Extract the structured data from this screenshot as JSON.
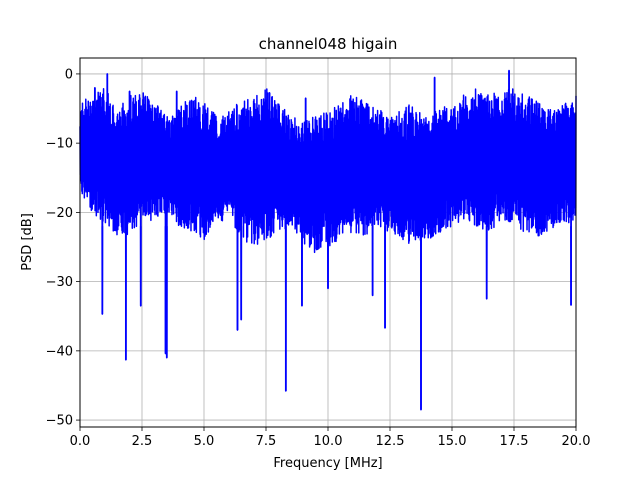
{
  "chart_data": {
    "type": "line",
    "title": "channel048 higain",
    "xlabel": "Frequency [MHz]",
    "ylabel": "PSD [dB]",
    "xlim": [
      0,
      20
    ],
    "ylim": [
      -51,
      2.3
    ],
    "xticks": [
      0,
      2.5,
      5,
      7.5,
      10,
      12.5,
      15,
      17.5,
      20
    ],
    "xtick_labels": [
      "0.0",
      "2.5",
      "5.0",
      "7.5",
      "10.0",
      "12.5",
      "15.0",
      "17.5",
      "20.0"
    ],
    "yticks": [
      0,
      -10,
      -20,
      -30,
      -40,
      -50
    ],
    "ytick_labels": [
      "0",
      "−10",
      "−20",
      "−30",
      "−40",
      "−50"
    ],
    "grid": true,
    "series": [
      {
        "color": "#0000ff",
        "x_start": 0,
        "x_end": 20,
        "band_upper": [
          -4,
          -3,
          -2,
          -5,
          -3,
          -2,
          -4,
          -6,
          -5,
          -3,
          -4,
          -6,
          -5,
          -4,
          -3,
          -2,
          -4,
          -6,
          -7,
          -6,
          -5,
          -4,
          -3,
          -4,
          -5,
          -6,
          -5,
          -4,
          -6,
          -5,
          -4,
          -3,
          -2,
          -3,
          -2,
          -2,
          -3,
          -4,
          -5,
          -4,
          -3
        ],
        "band_lower": [
          -17,
          -20,
          -22,
          -24,
          -23,
          -22,
          -21,
          -20,
          -22,
          -23,
          -24,
          -22,
          -21,
          -24,
          -25,
          -24,
          -23,
          -22,
          -25,
          -26,
          -25,
          -24,
          -23,
          -24,
          -22,
          -23,
          -24,
          -25,
          -24,
          -23,
          -22,
          -21,
          -22,
          -23,
          -21,
          -22,
          -23,
          -24,
          -23,
          -22,
          -21
        ],
        "peaks": [
          [
            1.1,
            0
          ],
          [
            17.3,
            0.5
          ],
          [
            14.3,
            -0.5
          ],
          [
            0.6,
            -2
          ],
          [
            2.0,
            -2.5
          ],
          [
            3.9,
            -2.5
          ],
          [
            9.1,
            -3.5
          ]
        ],
        "dips": [
          [
            0.9,
            -34.7
          ],
          [
            1.85,
            -41.3
          ],
          [
            2.45,
            -33.5
          ],
          [
            3.45,
            -40.4
          ],
          [
            3.5,
            -41.0
          ],
          [
            6.35,
            -37.0
          ],
          [
            6.5,
            -35.5
          ],
          [
            8.3,
            -45.8
          ],
          [
            8.95,
            -33.5
          ],
          [
            10.0,
            -31.0
          ],
          [
            11.8,
            -32.0
          ],
          [
            12.3,
            -36.7
          ],
          [
            13.75,
            -48.5
          ],
          [
            16.4,
            -32.5
          ],
          [
            19.8,
            -33.4
          ]
        ]
      }
    ]
  }
}
